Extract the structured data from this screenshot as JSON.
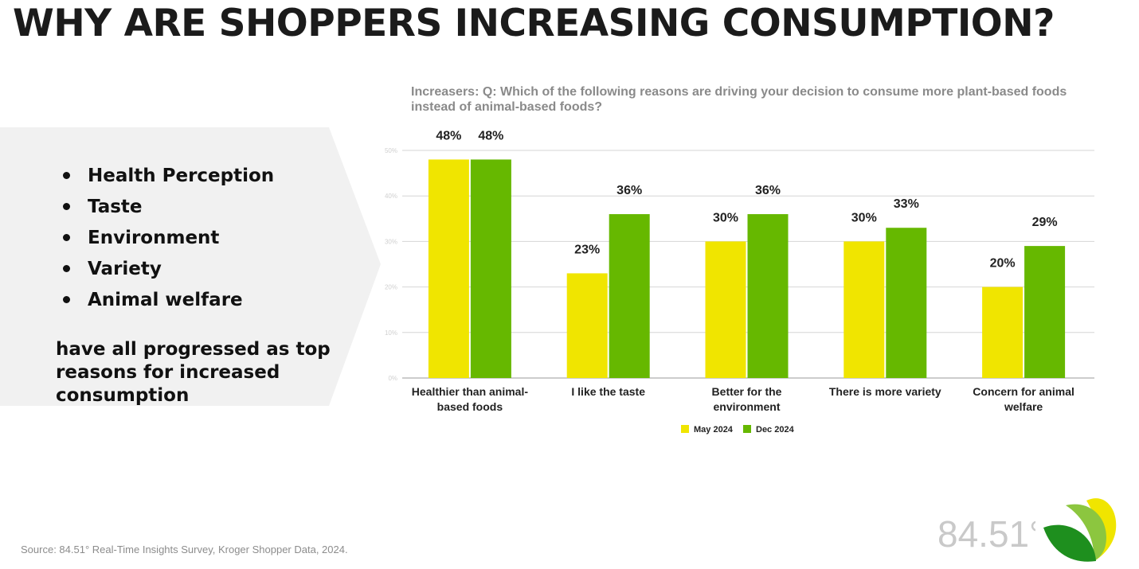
{
  "page": {
    "title": "WHY ARE SHOPPERS INCREASING CONSUMPTION?",
    "source": "Source: 84.51° Real-Time Insights Survey, Kroger Shopper Data, 2024.",
    "brand_text": "84.51°"
  },
  "reasons": [
    "Health Perception",
    "Taste",
    "Environment",
    "Variety",
    "Animal welfare"
  ],
  "summary": "have all progressed as top reasons for increased consumption",
  "colors": {
    "panel": "#f1f1f1",
    "series_may": "#f0e500",
    "series_dec": "#66b800",
    "gridline": "#d6d6d6"
  },
  "chart_data": {
    "type": "bar",
    "title": "Increasers: Q: Which of the following reasons are driving your decision to consume more plant-based foods instead of animal-based foods?",
    "categories": [
      [
        "Healthier than animal-",
        "based foods"
      ],
      [
        "I like the taste"
      ],
      [
        "Better for the",
        "environment"
      ],
      [
        "There is more variety"
      ],
      [
        "Concern for animal",
        "welfare"
      ]
    ],
    "series": [
      {
        "name": "May 2024",
        "values": [
          48,
          23,
          30,
          30,
          20
        ],
        "labels": [
          "48%",
          "23%",
          "30%",
          "30%",
          "20%"
        ]
      },
      {
        "name": "Dec 2024",
        "values": [
          48,
          36,
          36,
          33,
          29
        ],
        "labels": [
          "48%",
          "36%",
          "36%",
          "33%",
          "29%"
        ]
      }
    ],
    "yticks": [
      "0%",
      "10%",
      "20%",
      "30%",
      "40%",
      "50%"
    ],
    "ylim": [
      0,
      50
    ],
    "legend": "bottom-center",
    "grid": true
  }
}
